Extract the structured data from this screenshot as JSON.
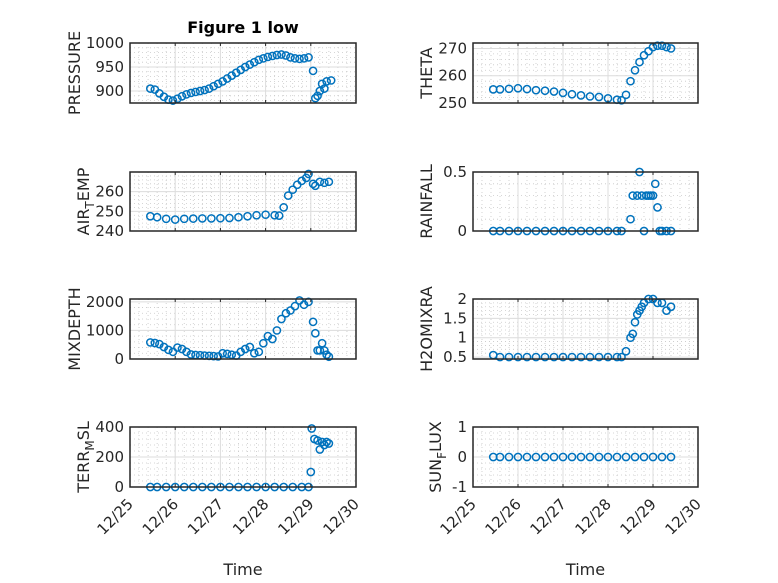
{
  "chart_data": [
    {
      "type": "scatter",
      "title": "Figure 1 low",
      "ylabel": "PRESSURE",
      "ylim": [
        875,
        1000
      ],
      "yticks": [
        900,
        950,
        1000
      ],
      "ytick_labels": [
        "900",
        "950",
        "1000"
      ],
      "xlim": [
        0,
        5
      ],
      "grid": true,
      "x": [
        0.45,
        0.55,
        0.65,
        0.75,
        0.85,
        0.95,
        1.05,
        1.15,
        1.25,
        1.35,
        1.45,
        1.55,
        1.65,
        1.75,
        1.85,
        1.95,
        2.05,
        2.15,
        2.25,
        2.35,
        2.45,
        2.55,
        2.65,
        2.75,
        2.85,
        2.95,
        3.05,
        3.15,
        3.25,
        3.35,
        3.45,
        3.55,
        3.65,
        3.75,
        3.85,
        3.95,
        4.05,
        4.1,
        4.15,
        4.2,
        4.25,
        4.3,
        4.35,
        4.45
      ],
      "y": [
        905,
        903,
        895,
        888,
        882,
        880,
        884,
        889,
        893,
        896,
        898,
        900,
        902,
        905,
        910,
        915,
        920,
        926,
        932,
        938,
        944,
        950,
        955,
        960,
        965,
        968,
        971,
        973,
        975,
        976,
        974,
        970,
        968,
        967,
        968,
        970,
        942,
        885,
        890,
        900,
        915,
        905,
        920,
        922
      ]
    },
    {
      "type": "scatter",
      "title": "",
      "ylabel": "THETA",
      "ylim": [
        250,
        272
      ],
      "yticks": [
        250,
        260,
        270
      ],
      "ytick_labels": [
        "250",
        "260",
        "270"
      ],
      "xlim": [
        0,
        5
      ],
      "grid": true,
      "x": [
        0.45,
        0.6,
        0.8,
        1.0,
        1.2,
        1.4,
        1.6,
        1.8,
        2.0,
        2.2,
        2.4,
        2.6,
        2.8,
        3.0,
        3.2,
        3.3,
        3.4,
        3.5,
        3.6,
        3.7,
        3.8,
        3.9,
        4.0,
        4.1,
        4.2,
        4.3,
        4.4
      ],
      "y": [
        255,
        255,
        255.2,
        255.4,
        255.1,
        254.7,
        254.5,
        254.2,
        253.7,
        253.2,
        252.8,
        252.4,
        252.2,
        251.7,
        251.2,
        251,
        253,
        258,
        262,
        265,
        267.5,
        269,
        270.5,
        271,
        271,
        270.5,
        270
      ]
    },
    {
      "type": "scatter",
      "title": "",
      "ylabel": "AIR_TEMP",
      "ylim": [
        240,
        270
      ],
      "yticks": [
        240,
        250,
        260
      ],
      "ytick_labels": [
        "240",
        "250",
        "260"
      ],
      "xlim": [
        0,
        5
      ],
      "grid": true,
      "x": [
        0.45,
        0.6,
        0.8,
        1.0,
        1.2,
        1.4,
        1.6,
        1.8,
        2.0,
        2.2,
        2.4,
        2.6,
        2.8,
        3.0,
        3.2,
        3.3,
        3.4,
        3.5,
        3.6,
        3.7,
        3.8,
        3.9,
        3.95,
        4.05,
        4.1,
        4.2,
        4.3,
        4.4
      ],
      "y": [
        247.5,
        247,
        246.2,
        245.8,
        246.2,
        246.3,
        246.4,
        246.4,
        246.5,
        246.6,
        247,
        247.5,
        248,
        248.3,
        248,
        247.8,
        252,
        258,
        261,
        263.5,
        265.5,
        267,
        269,
        264,
        263,
        265,
        264.5,
        265
      ]
    },
    {
      "type": "scatter",
      "title": "",
      "ylabel": "RAINFALL",
      "ylim": [
        0,
        0.5
      ],
      "yticks": [
        0,
        0.5
      ],
      "ytick_labels": [
        "0",
        "0.5"
      ],
      "xlim": [
        0,
        5
      ],
      "grid": true,
      "x": [
        0.45,
        0.6,
        0.8,
        1.0,
        1.2,
        1.4,
        1.6,
        1.8,
        2.0,
        2.2,
        2.4,
        2.6,
        2.8,
        3.0,
        3.2,
        3.3,
        3.5,
        3.55,
        3.65,
        3.7,
        3.75,
        3.8,
        3.85,
        3.9,
        3.95,
        4.0,
        4.05,
        4.1,
        4.15,
        4.2,
        4.3,
        4.4
      ],
      "y": [
        0,
        0,
        0,
        0,
        0,
        0,
        0,
        0,
        0,
        0,
        0,
        0,
        0,
        0,
        0,
        0,
        0.1,
        0.3,
        0.3,
        0.5,
        0.3,
        0,
        0.3,
        0.3,
        0.3,
        0.3,
        0.4,
        0.2,
        0,
        0,
        0,
        0
      ]
    },
    {
      "type": "scatter",
      "title": "",
      "ylabel": "MIXDEPTH",
      "ylim": [
        0,
        2100
      ],
      "yticks": [
        0,
        1000,
        2000
      ],
      "ytick_labels": [
        "0",
        "1000",
        "2000"
      ],
      "xlim": [
        0,
        5
      ],
      "grid": true,
      "x": [
        0.45,
        0.55,
        0.65,
        0.75,
        0.85,
        0.95,
        1.05,
        1.15,
        1.25,
        1.35,
        1.45,
        1.55,
        1.65,
        1.75,
        1.85,
        1.95,
        2.05,
        2.15,
        2.25,
        2.35,
        2.45,
        2.55,
        2.65,
        2.75,
        2.85,
        2.95,
        3.05,
        3.15,
        3.25,
        3.35,
        3.45,
        3.55,
        3.65,
        3.75,
        3.85,
        3.95,
        4.05,
        4.1,
        4.15,
        4.2,
        4.25,
        4.3,
        4.35,
        4.4
      ],
      "y": [
        580,
        560,
        520,
        420,
        320,
        250,
        400,
        350,
        250,
        160,
        140,
        130,
        120,
        110,
        100,
        90,
        200,
        180,
        150,
        120,
        250,
        350,
        420,
        200,
        250,
        550,
        800,
        700,
        1000,
        1400,
        1600,
        1700,
        1850,
        2050,
        1900,
        2000,
        1300,
        900,
        300,
        300,
        550,
        300,
        150,
        80
      ]
    },
    {
      "type": "scatter",
      "title": "",
      "ylabel": "H2OMIXRA",
      "ylim": [
        0.45,
        2
      ],
      "yticks": [
        0.5,
        1,
        1.5,
        2
      ],
      "ytick_labels": [
        "0.5",
        "1",
        "1.5",
        "2"
      ],
      "xlim": [
        0,
        5
      ],
      "grid": true,
      "x": [
        0.45,
        0.6,
        0.8,
        1.0,
        1.2,
        1.4,
        1.6,
        1.8,
        2.0,
        2.2,
        2.4,
        2.6,
        2.8,
        3.0,
        3.2,
        3.3,
        3.4,
        3.5,
        3.55,
        3.6,
        3.65,
        3.7,
        3.75,
        3.8,
        3.9,
        4.0,
        4.1,
        4.2,
        4.3,
        4.4
      ],
      "y": [
        0.55,
        0.5,
        0.5,
        0.5,
        0.5,
        0.5,
        0.5,
        0.5,
        0.5,
        0.5,
        0.5,
        0.5,
        0.5,
        0.5,
        0.5,
        0.5,
        0.65,
        1.0,
        1.1,
        1.4,
        1.6,
        1.7,
        1.8,
        1.9,
        2.0,
        2.0,
        1.9,
        1.9,
        1.7,
        1.8
      ]
    },
    {
      "type": "scatter",
      "title": "",
      "ylabel": "TERR_MSL",
      "ylim": [
        0,
        400
      ],
      "yticks": [
        0,
        200,
        400
      ],
      "ytick_labels": [
        "0",
        "200",
        "400"
      ],
      "xlim": [
        0,
        5
      ],
      "grid": true,
      "x": [
        0.45,
        0.6,
        0.8,
        1.0,
        1.2,
        1.4,
        1.6,
        1.8,
        2.0,
        2.2,
        2.4,
        2.6,
        2.8,
        3.0,
        3.2,
        3.4,
        3.6,
        3.8,
        3.95,
        4.0,
        4.02,
        4.08,
        4.15,
        4.2,
        4.25,
        4.3,
        4.35,
        4.4
      ],
      "y": [
        0,
        0,
        0,
        0,
        0,
        0,
        0,
        0,
        0,
        0,
        0,
        0,
        0,
        0,
        0,
        0,
        0,
        0,
        0,
        100,
        390,
        320,
        310,
        250,
        300,
        280,
        300,
        290
      ]
    },
    {
      "type": "scatter",
      "title": "",
      "ylabel": "SUN_FLUX",
      "ylim": [
        -1,
        1
      ],
      "yticks": [
        -1,
        0,
        1
      ],
      "ytick_labels": [
        "-1",
        "0",
        "1"
      ],
      "xlim": [
        0,
        5
      ],
      "grid": true,
      "x": [
        0.45,
        0.6,
        0.8,
        1.0,
        1.2,
        1.4,
        1.6,
        1.8,
        2.0,
        2.2,
        2.4,
        2.6,
        2.8,
        3.0,
        3.2,
        3.4,
        3.6,
        3.8,
        4.0,
        4.2,
        4.4
      ],
      "y": [
        0,
        0,
        0,
        0,
        0,
        0,
        0,
        0,
        0,
        0,
        0,
        0,
        0,
        0,
        0,
        0,
        0,
        0,
        0,
        0,
        0
      ]
    }
  ],
  "xaxis": {
    "label": "Time",
    "tick_labels": [
      "12/25",
      "12/26",
      "12/27",
      "12/28",
      "12/29",
      "12/30"
    ]
  },
  "colors": {
    "marker": "#0072BD",
    "axis": "#262626",
    "grid": "#dcdcdc"
  }
}
